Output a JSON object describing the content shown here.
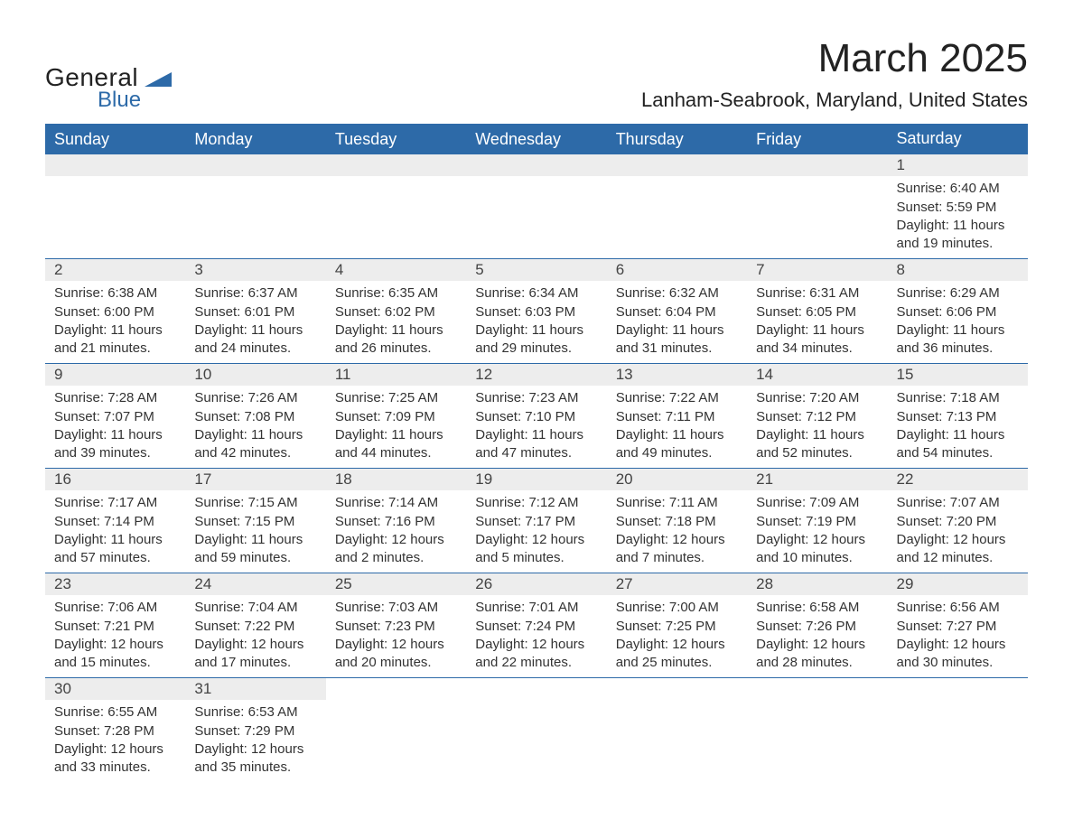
{
  "logo": {
    "text1": "General",
    "text2": "Blue",
    "shape_color": "#2d6aa8",
    "text_color": "#222222"
  },
  "title": "March 2025",
  "location": "Lanham-Seabrook, Maryland, United States",
  "colors": {
    "header_bg": "#2d6aa8",
    "header_text": "#ffffff",
    "day_bg": "#ededed",
    "body_text": "#333333",
    "border": "#2d6aa8"
  },
  "weekdays": [
    "Sunday",
    "Monday",
    "Tuesday",
    "Wednesday",
    "Thursday",
    "Friday",
    "Saturday"
  ],
  "weeks": [
    [
      null,
      null,
      null,
      null,
      null,
      null,
      {
        "n": "1",
        "sunrise": "6:40 AM",
        "sunset": "5:59 PM",
        "daylight": "11 hours and 19 minutes."
      }
    ],
    [
      {
        "n": "2",
        "sunrise": "6:38 AM",
        "sunset": "6:00 PM",
        "daylight": "11 hours and 21 minutes."
      },
      {
        "n": "3",
        "sunrise": "6:37 AM",
        "sunset": "6:01 PM",
        "daylight": "11 hours and 24 minutes."
      },
      {
        "n": "4",
        "sunrise": "6:35 AM",
        "sunset": "6:02 PM",
        "daylight": "11 hours and 26 minutes."
      },
      {
        "n": "5",
        "sunrise": "6:34 AM",
        "sunset": "6:03 PM",
        "daylight": "11 hours and 29 minutes."
      },
      {
        "n": "6",
        "sunrise": "6:32 AM",
        "sunset": "6:04 PM",
        "daylight": "11 hours and 31 minutes."
      },
      {
        "n": "7",
        "sunrise": "6:31 AM",
        "sunset": "6:05 PM",
        "daylight": "11 hours and 34 minutes."
      },
      {
        "n": "8",
        "sunrise": "6:29 AM",
        "sunset": "6:06 PM",
        "daylight": "11 hours and 36 minutes."
      }
    ],
    [
      {
        "n": "9",
        "sunrise": "7:28 AM",
        "sunset": "7:07 PM",
        "daylight": "11 hours and 39 minutes."
      },
      {
        "n": "10",
        "sunrise": "7:26 AM",
        "sunset": "7:08 PM",
        "daylight": "11 hours and 42 minutes."
      },
      {
        "n": "11",
        "sunrise": "7:25 AM",
        "sunset": "7:09 PM",
        "daylight": "11 hours and 44 minutes."
      },
      {
        "n": "12",
        "sunrise": "7:23 AM",
        "sunset": "7:10 PM",
        "daylight": "11 hours and 47 minutes."
      },
      {
        "n": "13",
        "sunrise": "7:22 AM",
        "sunset": "7:11 PM",
        "daylight": "11 hours and 49 minutes."
      },
      {
        "n": "14",
        "sunrise": "7:20 AM",
        "sunset": "7:12 PM",
        "daylight": "11 hours and 52 minutes."
      },
      {
        "n": "15",
        "sunrise": "7:18 AM",
        "sunset": "7:13 PM",
        "daylight": "11 hours and 54 minutes."
      }
    ],
    [
      {
        "n": "16",
        "sunrise": "7:17 AM",
        "sunset": "7:14 PM",
        "daylight": "11 hours and 57 minutes."
      },
      {
        "n": "17",
        "sunrise": "7:15 AM",
        "sunset": "7:15 PM",
        "daylight": "11 hours and 59 minutes."
      },
      {
        "n": "18",
        "sunrise": "7:14 AM",
        "sunset": "7:16 PM",
        "daylight": "12 hours and 2 minutes."
      },
      {
        "n": "19",
        "sunrise": "7:12 AM",
        "sunset": "7:17 PM",
        "daylight": "12 hours and 5 minutes."
      },
      {
        "n": "20",
        "sunrise": "7:11 AM",
        "sunset": "7:18 PM",
        "daylight": "12 hours and 7 minutes."
      },
      {
        "n": "21",
        "sunrise": "7:09 AM",
        "sunset": "7:19 PM",
        "daylight": "12 hours and 10 minutes."
      },
      {
        "n": "22",
        "sunrise": "7:07 AM",
        "sunset": "7:20 PM",
        "daylight": "12 hours and 12 minutes."
      }
    ],
    [
      {
        "n": "23",
        "sunrise": "7:06 AM",
        "sunset": "7:21 PM",
        "daylight": "12 hours and 15 minutes."
      },
      {
        "n": "24",
        "sunrise": "7:04 AM",
        "sunset": "7:22 PM",
        "daylight": "12 hours and 17 minutes."
      },
      {
        "n": "25",
        "sunrise": "7:03 AM",
        "sunset": "7:23 PM",
        "daylight": "12 hours and 20 minutes."
      },
      {
        "n": "26",
        "sunrise": "7:01 AM",
        "sunset": "7:24 PM",
        "daylight": "12 hours and 22 minutes."
      },
      {
        "n": "27",
        "sunrise": "7:00 AM",
        "sunset": "7:25 PM",
        "daylight": "12 hours and 25 minutes."
      },
      {
        "n": "28",
        "sunrise": "6:58 AM",
        "sunset": "7:26 PM",
        "daylight": "12 hours and 28 minutes."
      },
      {
        "n": "29",
        "sunrise": "6:56 AM",
        "sunset": "7:27 PM",
        "daylight": "12 hours and 30 minutes."
      }
    ],
    [
      {
        "n": "30",
        "sunrise": "6:55 AM",
        "sunset": "7:28 PM",
        "daylight": "12 hours and 33 minutes."
      },
      {
        "n": "31",
        "sunrise": "6:53 AM",
        "sunset": "7:29 PM",
        "daylight": "12 hours and 35 minutes."
      },
      null,
      null,
      null,
      null,
      null
    ]
  ],
  "labels": {
    "sunrise": "Sunrise: ",
    "sunset": "Sunset: ",
    "daylight": "Daylight: "
  }
}
